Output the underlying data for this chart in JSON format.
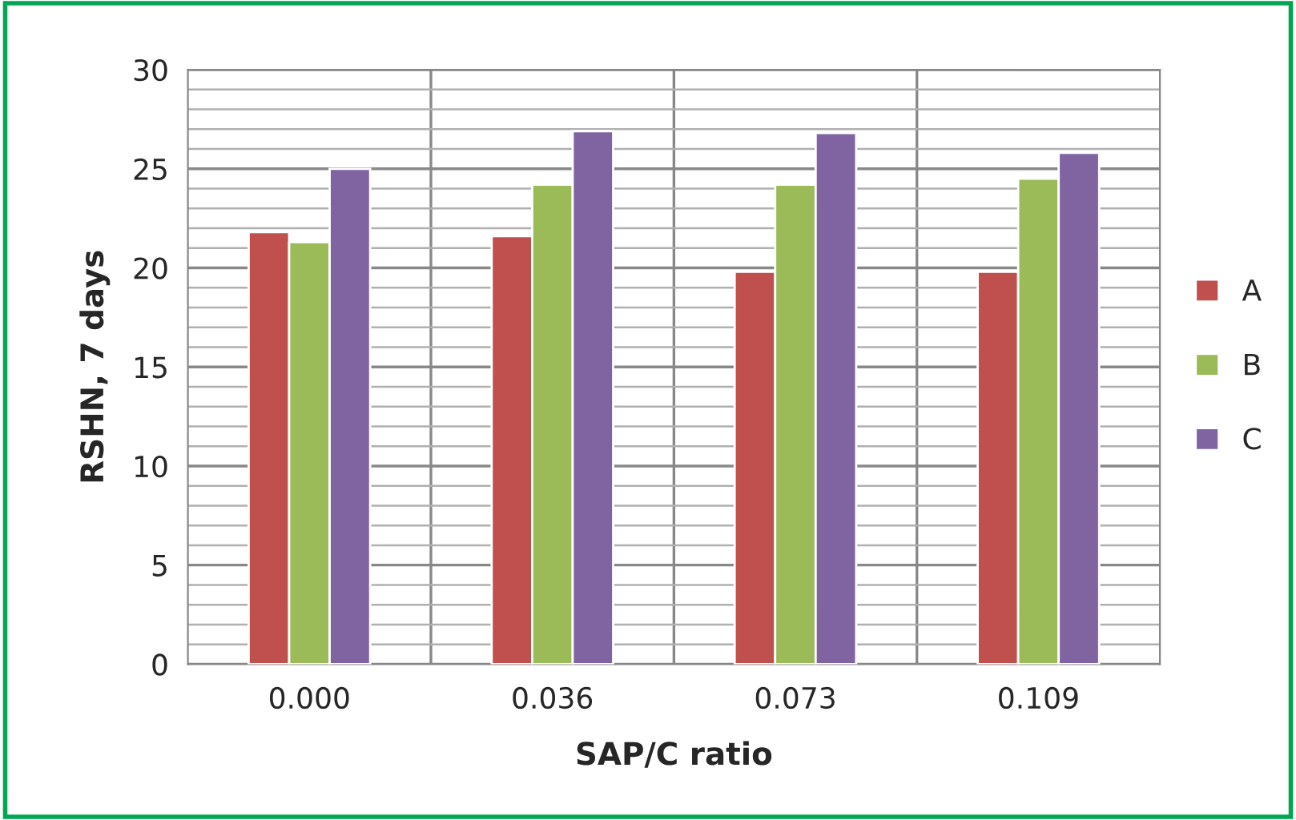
{
  "chart_data": {
    "type": "bar",
    "xlabel": "SAP/C ratio",
    "ylabel": "RSHN, 7 days",
    "categories": [
      "0.000",
      "0.036",
      "0.073",
      "0.109"
    ],
    "series": [
      {
        "name": "A",
        "color": "#c0504d",
        "values": [
          21.8,
          21.6,
          19.8,
          19.8
        ]
      },
      {
        "name": "B",
        "color": "#9bbb59",
        "values": [
          21.3,
          24.2,
          24.2,
          24.5
        ]
      },
      {
        "name": "C",
        "color": "#8064a2",
        "values": [
          25.0,
          26.9,
          26.8,
          25.8
        ]
      }
    ],
    "ylim": [
      0,
      30
    ],
    "yticks": [
      0,
      5,
      10,
      15,
      20,
      25,
      30
    ],
    "grid": true,
    "legend": "right"
  }
}
